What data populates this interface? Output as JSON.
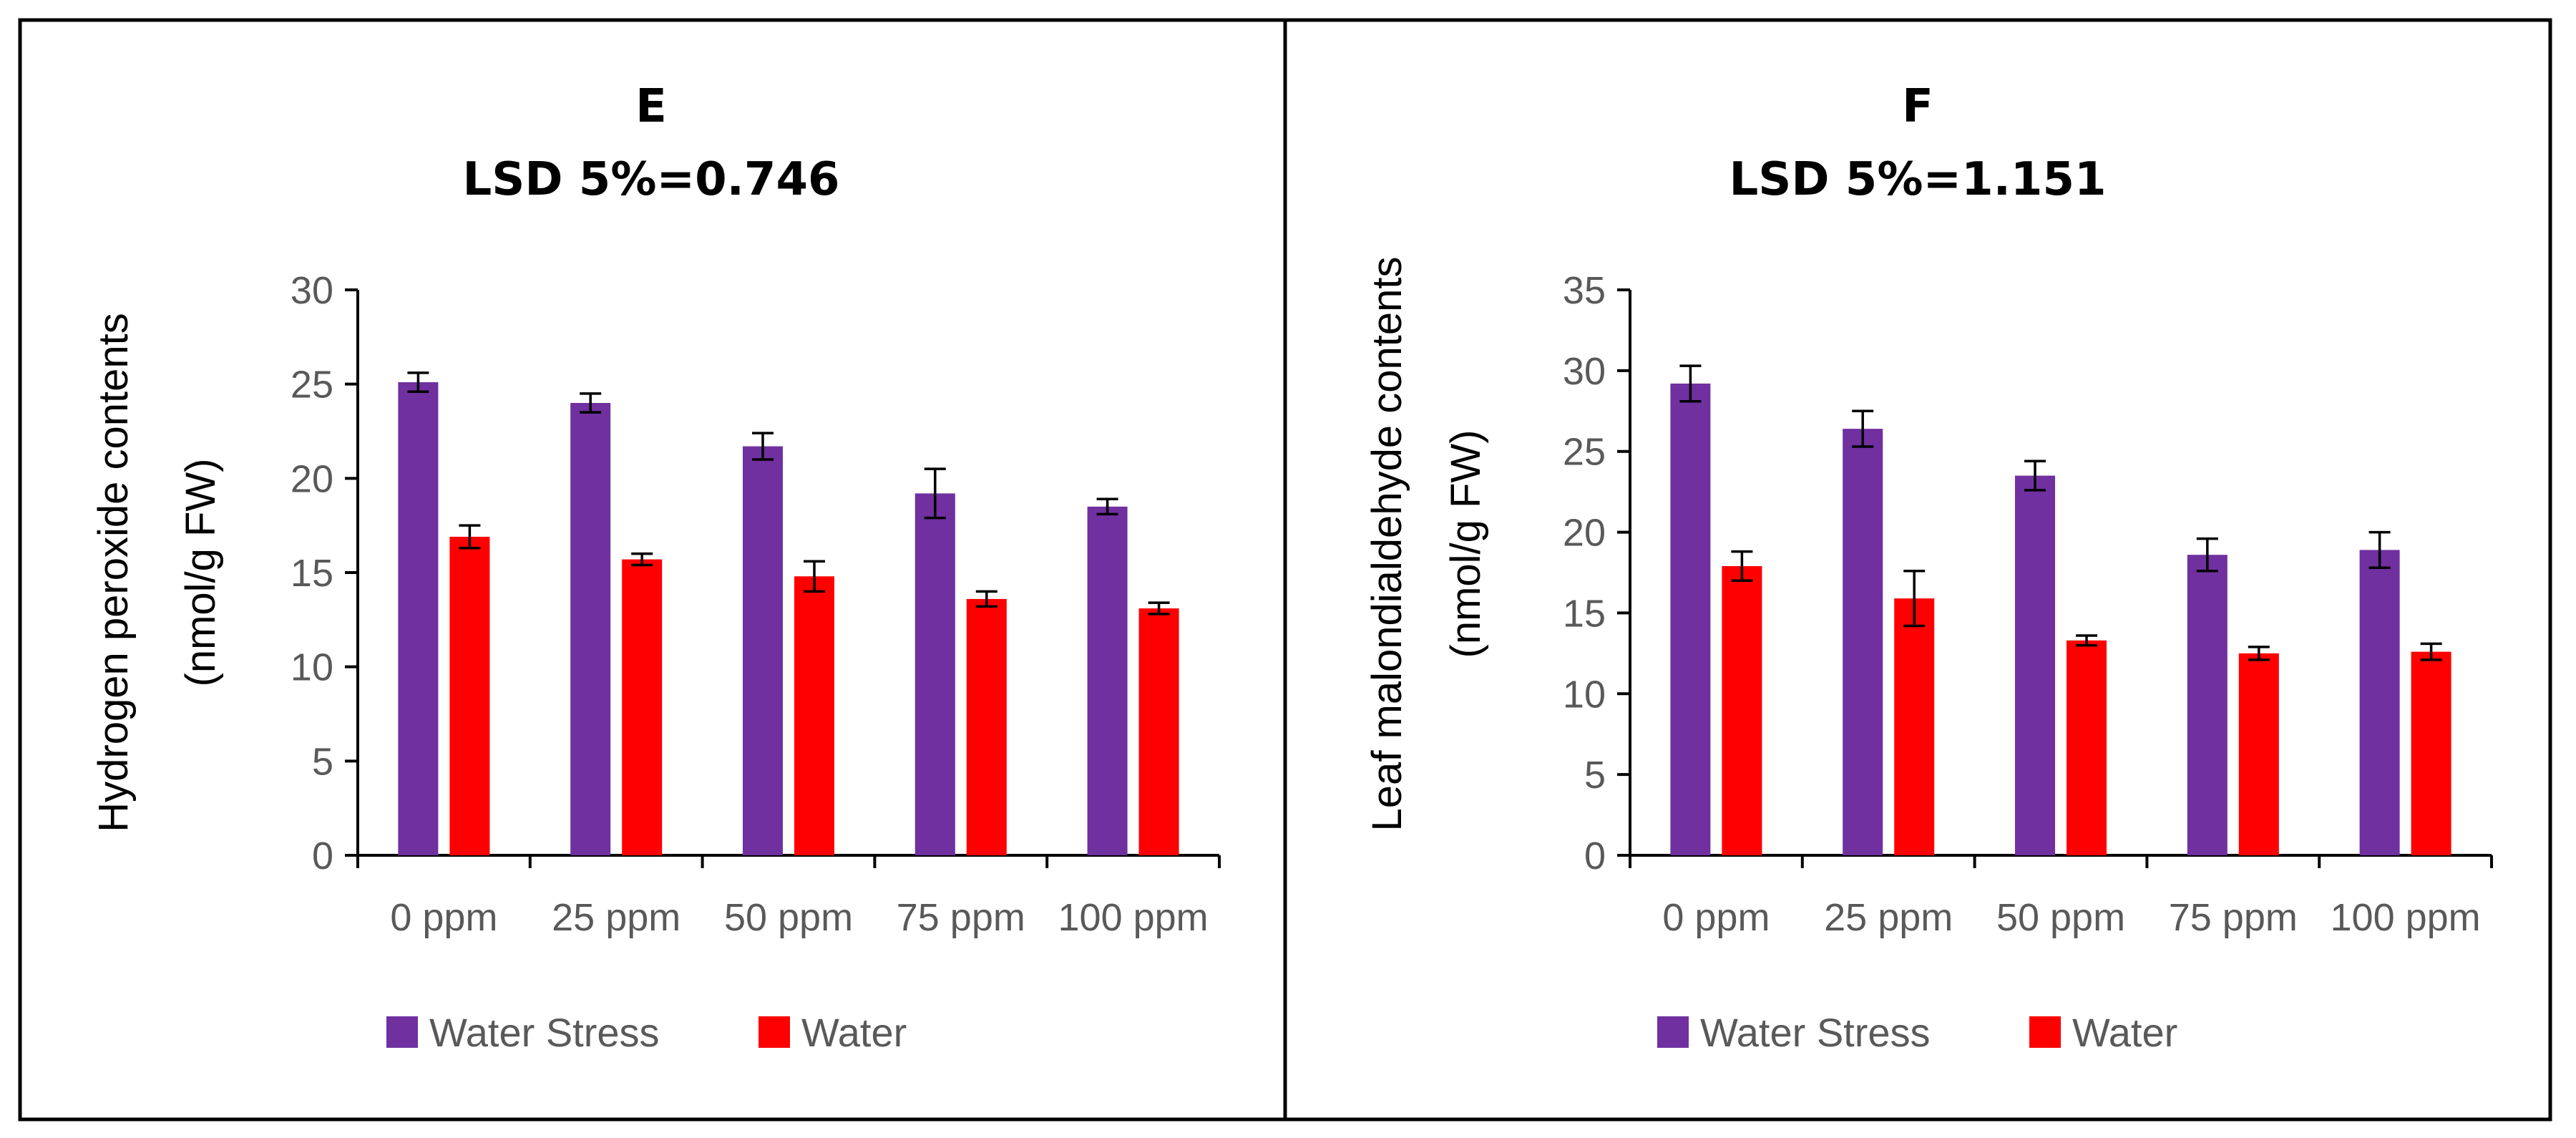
{
  "colors": {
    "water_stress": "#7030A0",
    "water": "#FF0000",
    "axis": "#000000",
    "tick_text": "#595959",
    "error_bar": "#000000",
    "frame": "#000000"
  },
  "panels": [
    {
      "title": "E",
      "subtitle": "LSD 5%=0.746",
      "ylabel_line1": "Hydrogen peroxide contents",
      "ylabel_line2": "(nmol/g FW)",
      "legend": [
        "Water Stress",
        "Water"
      ]
    },
    {
      "title": "F",
      "subtitle": "LSD 5%=1.151",
      "ylabel_line1": "Leaf malondialdehyde contents",
      "ylabel_line2": "(nmol/g FW)",
      "legend": [
        "Water Stress",
        "Water"
      ]
    }
  ],
  "chart_data": [
    {
      "type": "bar",
      "title": "E",
      "subtitle": "LSD 5%=0.746",
      "ylabel": "Hydrogen peroxide contents (nmol/g FW)",
      "xlabel": "",
      "categories": [
        "0 ppm",
        "25 ppm",
        "50 ppm",
        "75 ppm",
        "100 ppm"
      ],
      "ylim": [
        0,
        30
      ],
      "yticks": [
        0,
        5,
        10,
        15,
        20,
        25,
        30
      ],
      "legend_position": "bottom",
      "series": [
        {
          "name": "Water Stress",
          "color": "#7030A0",
          "values": [
            25.1,
            24.0,
            21.7,
            19.2,
            18.5
          ],
          "errors": [
            0.5,
            0.5,
            0.7,
            1.3,
            0.4
          ]
        },
        {
          "name": "Water",
          "color": "#FF0000",
          "values": [
            16.9,
            15.7,
            14.8,
            13.6,
            13.1
          ],
          "errors": [
            0.6,
            0.3,
            0.8,
            0.4,
            0.3
          ]
        }
      ]
    },
    {
      "type": "bar",
      "title": "F",
      "subtitle": "LSD 5%=1.151",
      "ylabel": "Leaf malondialdehyde contents (nmol/g FW)",
      "xlabel": "",
      "categories": [
        "0 ppm",
        "25 ppm",
        "50 ppm",
        "75 ppm",
        "100 ppm"
      ],
      "ylim": [
        0,
        35
      ],
      "yticks": [
        0,
        5,
        10,
        15,
        20,
        25,
        30,
        35
      ],
      "legend_position": "bottom",
      "series": [
        {
          "name": "Water Stress",
          "color": "#7030A0",
          "values": [
            29.2,
            26.4,
            23.5,
            18.6,
            18.9
          ],
          "errors": [
            1.1,
            1.1,
            0.9,
            1.0,
            1.1
          ]
        },
        {
          "name": "Water",
          "color": "#FF0000",
          "values": [
            17.9,
            15.9,
            13.3,
            12.5,
            12.6
          ],
          "errors": [
            0.9,
            1.7,
            0.3,
            0.4,
            0.5
          ]
        }
      ]
    }
  ]
}
